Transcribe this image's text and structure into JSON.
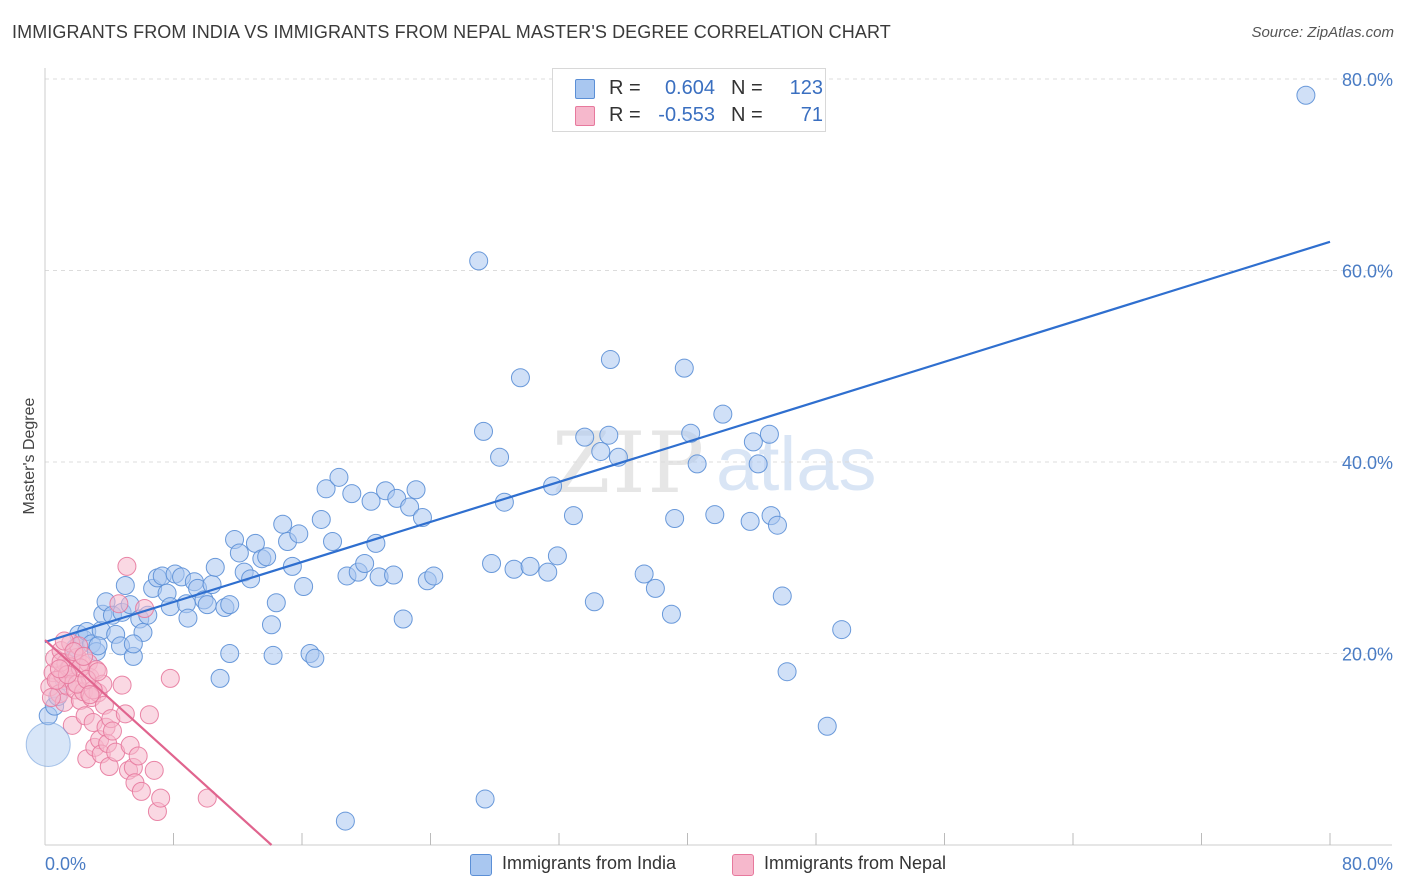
{
  "title": "IMMIGRANTS FROM INDIA VS IMMIGRANTS FROM NEPAL MASTER'S DEGREE CORRELATION CHART",
  "source": "Source: ZipAtlas.com",
  "watermark": {
    "zip": "ZIP",
    "atlas": "atlas"
  },
  "legend": {
    "india": {
      "r_label": "R =",
      "r_value": "0.604",
      "n_label": "N =",
      "n_value": "123"
    },
    "nepal": {
      "r_label": "R =",
      "r_value": "-0.553",
      "n_label": "N =",
      "n_value": "71"
    }
  },
  "colors": {
    "india_fill": "#a9c7f0",
    "india_stroke": "#5b8fd6",
    "india_line": "#2f6fcf",
    "nepal_fill": "#f6b8cc",
    "nepal_stroke": "#e7799d",
    "nepal_line": "#e0648e",
    "tick_text": "#4a7cc4",
    "grid": "#dcdcdc"
  },
  "chart_data": {
    "type": "scatter",
    "ylabel": "Master's Degree",
    "xlim": [
      0,
      80
    ],
    "ylim": [
      0,
      80
    ],
    "x_tick_labels": [
      "0.0%",
      "80.0%"
    ],
    "y_ticks": [
      20,
      40,
      60,
      80
    ],
    "y_tick_labels": [
      "20.0%",
      "40.0%",
      "60.0%",
      "80.0%"
    ],
    "grid": true,
    "series": [
      {
        "name": "Immigrants from India",
        "trend": {
          "x": [
            0,
            80
          ],
          "y": [
            21.2,
            63.0
          ]
        },
        "points": [
          [
            0.2,
            13.5
          ],
          [
            0.6,
            14.5
          ],
          [
            0.8,
            15.5
          ],
          [
            1.2,
            17.2
          ],
          [
            1.5,
            18.5
          ],
          [
            1.8,
            19.5
          ],
          [
            1.9,
            20.6
          ],
          [
            2.1,
            22.0
          ],
          [
            2.4,
            21.5
          ],
          [
            2.6,
            22.3
          ],
          [
            2.9,
            21.0
          ],
          [
            3.2,
            20.2
          ],
          [
            3.5,
            22.4
          ],
          [
            3.6,
            24.1
          ],
          [
            3.8,
            25.4
          ],
          [
            4.2,
            24.0
          ],
          [
            4.4,
            22.0
          ],
          [
            4.7,
            20.8
          ],
          [
            4.8,
            24.3
          ],
          [
            5.0,
            27.1
          ],
          [
            5.3,
            25.1
          ],
          [
            5.5,
            19.7
          ],
          [
            5.9,
            23.6
          ],
          [
            6.1,
            22.2
          ],
          [
            6.4,
            24.0
          ],
          [
            6.7,
            26.8
          ],
          [
            7.0,
            27.9
          ],
          [
            7.3,
            28.1
          ],
          [
            7.6,
            26.3
          ],
          [
            7.8,
            24.9
          ],
          [
            8.1,
            28.3
          ],
          [
            8.5,
            28.0
          ],
          [
            8.8,
            25.2
          ],
          [
            8.9,
            23.7
          ],
          [
            9.3,
            27.5
          ],
          [
            9.5,
            26.8
          ],
          [
            9.9,
            25.6
          ],
          [
            10.1,
            25.1
          ],
          [
            10.4,
            27.2
          ],
          [
            10.6,
            29.0
          ],
          [
            10.9,
            17.4
          ],
          [
            11.2,
            24.8
          ],
          [
            11.5,
            25.1
          ],
          [
            11.8,
            31.9
          ],
          [
            12.1,
            30.5
          ],
          [
            12.4,
            28.5
          ],
          [
            12.8,
            27.8
          ],
          [
            13.1,
            31.5
          ],
          [
            13.5,
            29.9
          ],
          [
            13.8,
            30.1
          ],
          [
            14.1,
            23.0
          ],
          [
            14.4,
            25.3
          ],
          [
            14.8,
            33.5
          ],
          [
            15.1,
            31.7
          ],
          [
            15.4,
            29.1
          ],
          [
            15.8,
            32.5
          ],
          [
            16.1,
            27.0
          ],
          [
            16.5,
            20.0
          ],
          [
            16.8,
            19.5
          ],
          [
            17.2,
            34.0
          ],
          [
            17.5,
            37.2
          ],
          [
            17.9,
            31.7
          ],
          [
            18.3,
            38.4
          ],
          [
            18.8,
            28.1
          ],
          [
            19.1,
            36.7
          ],
          [
            19.5,
            28.5
          ],
          [
            19.9,
            29.4
          ],
          [
            20.3,
            35.9
          ],
          [
            20.6,
            31.5
          ],
          [
            20.8,
            28.0
          ],
          [
            21.2,
            37.0
          ],
          [
            21.7,
            28.2
          ],
          [
            21.9,
            36.2
          ],
          [
            22.3,
            23.6
          ],
          [
            22.7,
            35.3
          ],
          [
            23.1,
            37.1
          ],
          [
            23.5,
            34.2
          ],
          [
            23.8,
            27.6
          ],
          [
            24.2,
            28.1
          ],
          [
            18.7,
            2.5
          ],
          [
            14.2,
            19.8
          ],
          [
            11.5,
            20.0
          ],
          [
            27.0,
            61.0
          ],
          [
            27.3,
            43.2
          ],
          [
            27.8,
            29.4
          ],
          [
            28.3,
            40.5
          ],
          [
            28.6,
            35.8
          ],
          [
            29.2,
            28.8
          ],
          [
            29.6,
            48.8
          ],
          [
            30.2,
            29.1
          ],
          [
            31.3,
            28.5
          ],
          [
            31.6,
            37.5
          ],
          [
            31.9,
            30.2
          ],
          [
            32.9,
            34.4
          ],
          [
            33.6,
            42.6
          ],
          [
            34.2,
            25.4
          ],
          [
            34.6,
            41.1
          ],
          [
            35.1,
            42.8
          ],
          [
            35.2,
            50.7
          ],
          [
            35.7,
            40.5
          ],
          [
            37.3,
            28.3
          ],
          [
            38.0,
            26.8
          ],
          [
            39.0,
            24.1
          ],
          [
            39.2,
            34.1
          ],
          [
            39.8,
            49.8
          ],
          [
            40.2,
            43.0
          ],
          [
            40.6,
            39.8
          ],
          [
            41.7,
            34.5
          ],
          [
            42.2,
            45.0
          ],
          [
            43.9,
            33.8
          ],
          [
            44.1,
            42.1
          ],
          [
            44.4,
            39.8
          ],
          [
            45.1,
            42.9
          ],
          [
            45.2,
            34.4
          ],
          [
            45.6,
            33.4
          ],
          [
            45.9,
            26.0
          ],
          [
            46.2,
            18.1
          ],
          [
            48.7,
            12.4
          ],
          [
            49.6,
            22.5
          ],
          [
            27.4,
            4.8
          ],
          [
            78.5,
            78.3
          ],
          [
            5.5,
            21.0
          ],
          [
            3.3,
            20.8
          ]
        ]
      },
      {
        "name": "Immigrants from Nepal",
        "trend": {
          "x": [
            0,
            14.1
          ],
          "y": [
            21.4,
            0
          ]
        },
        "points": [
          [
            0.3,
            16.5
          ],
          [
            0.5,
            18.0
          ],
          [
            0.6,
            19.5
          ],
          [
            0.8,
            17.2
          ],
          [
            0.9,
            15.8
          ],
          [
            1.0,
            20.3
          ],
          [
            1.1,
            17.8
          ],
          [
            1.2,
            14.9
          ],
          [
            1.3,
            19.0
          ],
          [
            1.4,
            16.6
          ],
          [
            1.5,
            18.4
          ],
          [
            1.6,
            21.1
          ],
          [
            1.7,
            12.5
          ],
          [
            1.8,
            17.0
          ],
          [
            1.9,
            16.2
          ],
          [
            2.0,
            19.6
          ],
          [
            2.1,
            20.8
          ],
          [
            2.2,
            15.1
          ],
          [
            2.3,
            18.9
          ],
          [
            2.4,
            16.0
          ],
          [
            2.5,
            13.5
          ],
          [
            2.6,
            9.0
          ],
          [
            2.7,
            19.0
          ],
          [
            2.8,
            17.5
          ],
          [
            2.9,
            15.4
          ],
          [
            3.0,
            12.8
          ],
          [
            3.1,
            10.2
          ],
          [
            3.2,
            18.3
          ],
          [
            3.3,
            15.9
          ],
          [
            3.4,
            11.0
          ],
          [
            3.5,
            9.5
          ],
          [
            3.6,
            16.8
          ],
          [
            3.7,
            14.6
          ],
          [
            3.8,
            12.3
          ],
          [
            3.9,
            10.6
          ],
          [
            4.0,
            8.2
          ],
          [
            4.1,
            13.2
          ],
          [
            4.2,
            11.9
          ],
          [
            4.4,
            9.7
          ],
          [
            4.6,
            25.2
          ],
          [
            4.8,
            16.7
          ],
          [
            5.0,
            13.7
          ],
          [
            5.1,
            29.1
          ],
          [
            5.2,
            7.8
          ],
          [
            5.3,
            10.4
          ],
          [
            5.5,
            8.1
          ],
          [
            5.6,
            6.5
          ],
          [
            5.8,
            9.3
          ],
          [
            6.0,
            5.6
          ],
          [
            6.2,
            24.7
          ],
          [
            6.5,
            13.6
          ],
          [
            6.8,
            7.8
          ],
          [
            7.0,
            3.5
          ],
          [
            7.2,
            4.9
          ],
          [
            7.8,
            17.4
          ],
          [
            10.1,
            4.9
          ],
          [
            1.2,
            21.3
          ],
          [
            2.0,
            16.8
          ],
          [
            1.6,
            18.6
          ],
          [
            0.7,
            17.2
          ],
          [
            2.2,
            18.5
          ],
          [
            3.0,
            16.2
          ],
          [
            1.0,
            19.1
          ],
          [
            2.6,
            17.3
          ],
          [
            1.8,
            20.2
          ],
          [
            0.4,
            15.4
          ],
          [
            1.4,
            17.8
          ],
          [
            2.8,
            15.7
          ],
          [
            3.3,
            18.1
          ],
          [
            0.9,
            18.4
          ],
          [
            2.4,
            19.7
          ]
        ]
      }
    ],
    "x_legend": [
      "Immigrants from India",
      "Immigrants from Nepal"
    ]
  }
}
